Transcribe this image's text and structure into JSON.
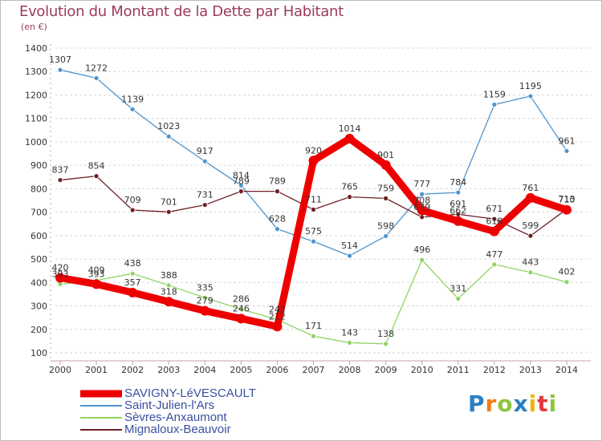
{
  "title": "Evolution du Montant de la Dette par Habitant",
  "subtitle": "(en €)",
  "logo": "Proxiti",
  "chart_data": {
    "type": "line",
    "title": "Evolution du Montant de la Dette par Habitant",
    "ylabel": "(en €)",
    "xlabel": "",
    "x": [
      "2000",
      "2001",
      "2002",
      "2003",
      "2004",
      "2005",
      "2006",
      "2007",
      "2008",
      "2009",
      "2010",
      "2011",
      "2012",
      "2013",
      "2014"
    ],
    "ylim": [
      100,
      1400
    ],
    "yticks": [
      100,
      200,
      300,
      400,
      500,
      600,
      700,
      800,
      900,
      1000,
      1100,
      1200,
      1300,
      1400
    ],
    "grid": "horizontal dashed",
    "legend_position": "bottom-left",
    "series": [
      {
        "name": "SAVIGNY-LéVESCAULT",
        "color": "#ee0000",
        "values": [
          420,
          393,
          357,
          318,
          279,
          246,
          212,
          920,
          1014,
          901,
          708,
          662,
          618,
          761,
          710
        ]
      },
      {
        "name": "Saint-Julien-l'Ars",
        "color": "#4f94cd",
        "values": [
          1307,
          1272,
          1139,
          1023,
          917,
          814,
          628,
          575,
          514,
          598,
          777,
          784,
          1159,
          1195,
          961
        ]
      },
      {
        "name": "Sèvres-Anxaumont",
        "color": "#8fd460",
        "values": [
          393,
          409,
          438,
          388,
          335,
          286,
          242,
          171,
          143,
          138,
          496,
          331,
          477,
          443,
          402
        ]
      },
      {
        "name": "Mignaloux-Beauvoir",
        "color": "#6e1f25",
        "values": [
          837,
          854,
          709,
          701,
          731,
          789,
          789,
          711,
          765,
          759,
          679,
          691,
          671,
          599,
          713
        ]
      }
    ]
  }
}
